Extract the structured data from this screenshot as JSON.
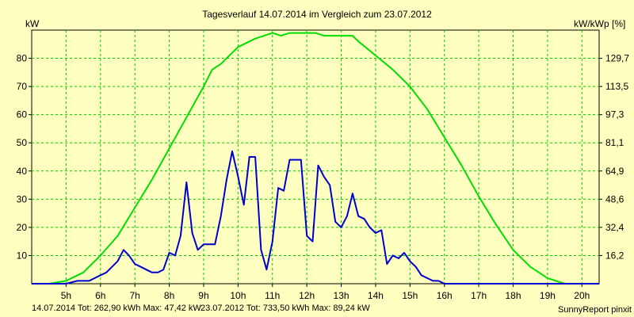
{
  "chart_data": {
    "type": "line",
    "title": "Tagesverlauf 14.07.2014 im Vergleich zum 23.07.2012",
    "ylabel_left": "kW",
    "ylabel_right": "kW/kWp [%]",
    "x_range_hours": [
      4.0,
      20.5
    ],
    "y_range_left": [
      0,
      90
    ],
    "x_ticks": [
      {
        "value": 5,
        "label": "5h"
      },
      {
        "value": 6,
        "label": "6h"
      },
      {
        "value": 7,
        "label": "7h"
      },
      {
        "value": 8,
        "label": "8h"
      },
      {
        "value": 9,
        "label": "9h"
      },
      {
        "value": 10,
        "label": "10h"
      },
      {
        "value": 11,
        "label": "11h"
      },
      {
        "value": 12,
        "label": "12h"
      },
      {
        "value": 13,
        "label": "13h"
      },
      {
        "value": 14,
        "label": "14h"
      },
      {
        "value": 15,
        "label": "15h"
      },
      {
        "value": 16,
        "label": "16h"
      },
      {
        "value": 17,
        "label": "17h"
      },
      {
        "value": 18,
        "label": "18h"
      },
      {
        "value": 19,
        "label": "19h"
      },
      {
        "value": 20,
        "label": "20h"
      }
    ],
    "y_ticks_left": [
      {
        "value": 10,
        "label": "10"
      },
      {
        "value": 20,
        "label": "20"
      },
      {
        "value": 30,
        "label": "30"
      },
      {
        "value": 40,
        "label": "40"
      },
      {
        "value": 50,
        "label": "50"
      },
      {
        "value": 60,
        "label": "60"
      },
      {
        "value": 70,
        "label": "70"
      },
      {
        "value": 80,
        "label": "80"
      }
    ],
    "y_ticks_right": [
      {
        "value": 10,
        "label": "16,2"
      },
      {
        "value": 20,
        "label": "32,4"
      },
      {
        "value": 30,
        "label": "48,6"
      },
      {
        "value": 40,
        "label": "64,9"
      },
      {
        "value": 50,
        "label": "81,1"
      },
      {
        "value": 60,
        "label": "97,3"
      },
      {
        "value": 70,
        "label": "113,5"
      },
      {
        "value": 80,
        "label": "129,7"
      }
    ],
    "grid": true,
    "series": [
      {
        "name": "14.07.2014",
        "color": "#0000cc",
        "x": [
          4.0,
          5.0,
          5.33,
          5.67,
          6.0,
          6.17,
          6.5,
          6.67,
          6.83,
          7.0,
          7.17,
          7.33,
          7.5,
          7.67,
          7.83,
          8.0,
          8.17,
          8.33,
          8.5,
          8.67,
          8.83,
          9.0,
          9.17,
          9.33,
          9.5,
          9.67,
          9.83,
          10.0,
          10.17,
          10.33,
          10.5,
          10.67,
          10.83,
          11.0,
          11.17,
          11.33,
          11.5,
          11.67,
          11.83,
          12.0,
          12.17,
          12.33,
          12.5,
          12.67,
          12.83,
          13.0,
          13.17,
          13.33,
          13.5,
          13.67,
          13.83,
          14.0,
          14.17,
          14.33,
          14.5,
          14.67,
          14.83,
          15.0,
          15.17,
          15.33,
          15.5,
          15.67,
          15.83,
          16.0,
          16.17,
          16.33,
          16.5,
          16.67,
          16.83,
          17.0,
          17.17,
          17.33,
          17.5,
          17.67,
          17.83,
          18.0,
          18.17,
          18.33,
          18.5,
          18.67,
          18.83,
          19.0,
          19.17,
          19.33,
          19.5,
          19.67,
          19.83,
          20.5
        ],
        "values": [
          0,
          0,
          1,
          1,
          3,
          4,
          8,
          12,
          10,
          7,
          6,
          5,
          4,
          4,
          5,
          11,
          10,
          17,
          36,
          18,
          12,
          14,
          14,
          14,
          24,
          37,
          47,
          38,
          28,
          45,
          45,
          12,
          5,
          15,
          34,
          33,
          44,
          44,
          44,
          17,
          15,
          42,
          38,
          35,
          22,
          20,
          24,
          32,
          24,
          23,
          20,
          18,
          19,
          7,
          10,
          9,
          11,
          8,
          6,
          3,
          2,
          1,
          1,
          0,
          0,
          0,
          0,
          0,
          0,
          0,
          0,
          0,
          0,
          0,
          0,
          0,
          0,
          0,
          0,
          0,
          0,
          0,
          0,
          0,
          0,
          0,
          0,
          0
        ]
      },
      {
        "name": "23.07.2012",
        "color": "#00dd00",
        "x": [
          4.0,
          4.5,
          5.0,
          5.5,
          6.0,
          6.5,
          7.0,
          7.5,
          8.0,
          8.5,
          9.0,
          9.25,
          9.5,
          10.0,
          10.5,
          11.0,
          11.25,
          11.5,
          11.75,
          12.0,
          12.25,
          12.5,
          12.67,
          12.83,
          13.0,
          13.33,
          13.5,
          14.0,
          14.5,
          15.0,
          15.5,
          16.0,
          16.5,
          17.0,
          17.5,
          18.0,
          18.5,
          19.0,
          19.5,
          20.0,
          20.5
        ],
        "values": [
          0,
          0,
          1,
          4,
          10,
          17,
          27,
          37,
          48,
          59,
          70,
          76,
          78,
          84,
          87,
          89,
          88,
          89,
          89,
          89,
          89,
          88,
          88,
          88,
          88,
          88,
          86,
          81,
          76,
          70,
          62,
          52,
          42,
          31,
          21,
          12,
          6,
          2,
          0,
          0,
          0
        ]
      }
    ],
    "footer": {
      "series1_text": "14.07.2014 Tot: 262,90 kWh Max: 47,42 kW",
      "series2_text": "23.07.2012 Tot: 733,50 kWh Max: 89,24 kW",
      "credit": "SunnyReport pinxit"
    },
    "colors": {
      "background": "#ffffc0",
      "grid": "#00cc00",
      "axis": "#000000"
    }
  }
}
